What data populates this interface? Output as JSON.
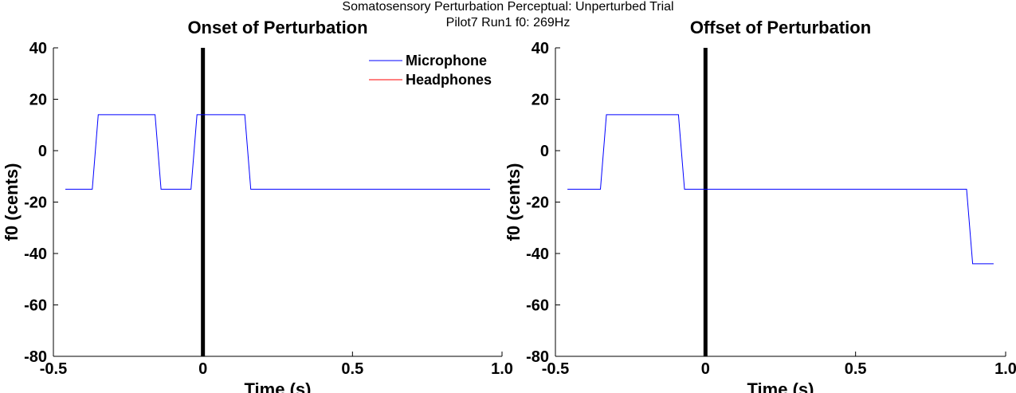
{
  "figure": {
    "suptitle_line1": "Somatosensory Perturbation Perceptual: Unperturbed Trial",
    "suptitle_line2": "Pilot7 Run1   f0: 269Hz"
  },
  "colors": {
    "microphone": "#0000ff",
    "headphones": "#ff0000",
    "marker": "#000000",
    "axes": "#000000"
  },
  "chart_data": [
    {
      "type": "line",
      "title": "Onset of Perturbation",
      "xlabel": "Time (s)",
      "ylabel": "f0 (cents)",
      "xlim": [
        -0.5,
        1.0
      ],
      "ylim": [
        -80,
        40
      ],
      "xticks": [
        -0.5,
        0,
        0.5,
        1.0
      ],
      "xtick_labels": [
        "-0.5",
        "0",
        "0.5",
        "1.0"
      ],
      "yticks": [
        40,
        20,
        0,
        -20,
        -40,
        -60,
        -80
      ],
      "ytick_labels": [
        "40",
        "20",
        "0",
        "-20",
        "-40",
        "-60",
        "-80"
      ],
      "grid": false,
      "legend": {
        "placement": "top-right",
        "entries": [
          "Microphone",
          "Headphones"
        ]
      },
      "vertical_marker_x": 0,
      "series": [
        {
          "name": "Microphone",
          "x": [
            -0.46,
            -0.37,
            -0.35,
            -0.16,
            -0.14,
            -0.04,
            -0.02,
            0.14,
            0.16,
            0.96
          ],
          "y": [
            -15,
            -15,
            14,
            14,
            -15,
            -15,
            14,
            14,
            -15,
            -15
          ]
        },
        {
          "name": "Headphones",
          "x": [],
          "y": []
        }
      ]
    },
    {
      "type": "line",
      "title": "Offset of Perturbation",
      "xlabel": "Time (s)",
      "ylabel": "f0 (cents)",
      "xlim": [
        -0.5,
        1.0
      ],
      "ylim": [
        -80,
        40
      ],
      "xticks": [
        -0.5,
        0,
        0.5,
        1.0
      ],
      "xtick_labels": [
        "-0.5",
        "0",
        "0.5",
        "1.0"
      ],
      "yticks": [
        40,
        20,
        0,
        -20,
        -40,
        -60,
        -80
      ],
      "ytick_labels": [
        "40",
        "20",
        "0",
        "-20",
        "-40",
        "-60",
        "-80"
      ],
      "grid": false,
      "vertical_marker_x": 0,
      "series": [
        {
          "name": "Microphone",
          "x": [
            -0.46,
            -0.35,
            -0.33,
            -0.09,
            -0.07,
            0.87,
            0.89,
            0.96
          ],
          "y": [
            -15,
            -15,
            14,
            14,
            -15,
            -15,
            -44,
            -44
          ]
        }
      ]
    }
  ]
}
